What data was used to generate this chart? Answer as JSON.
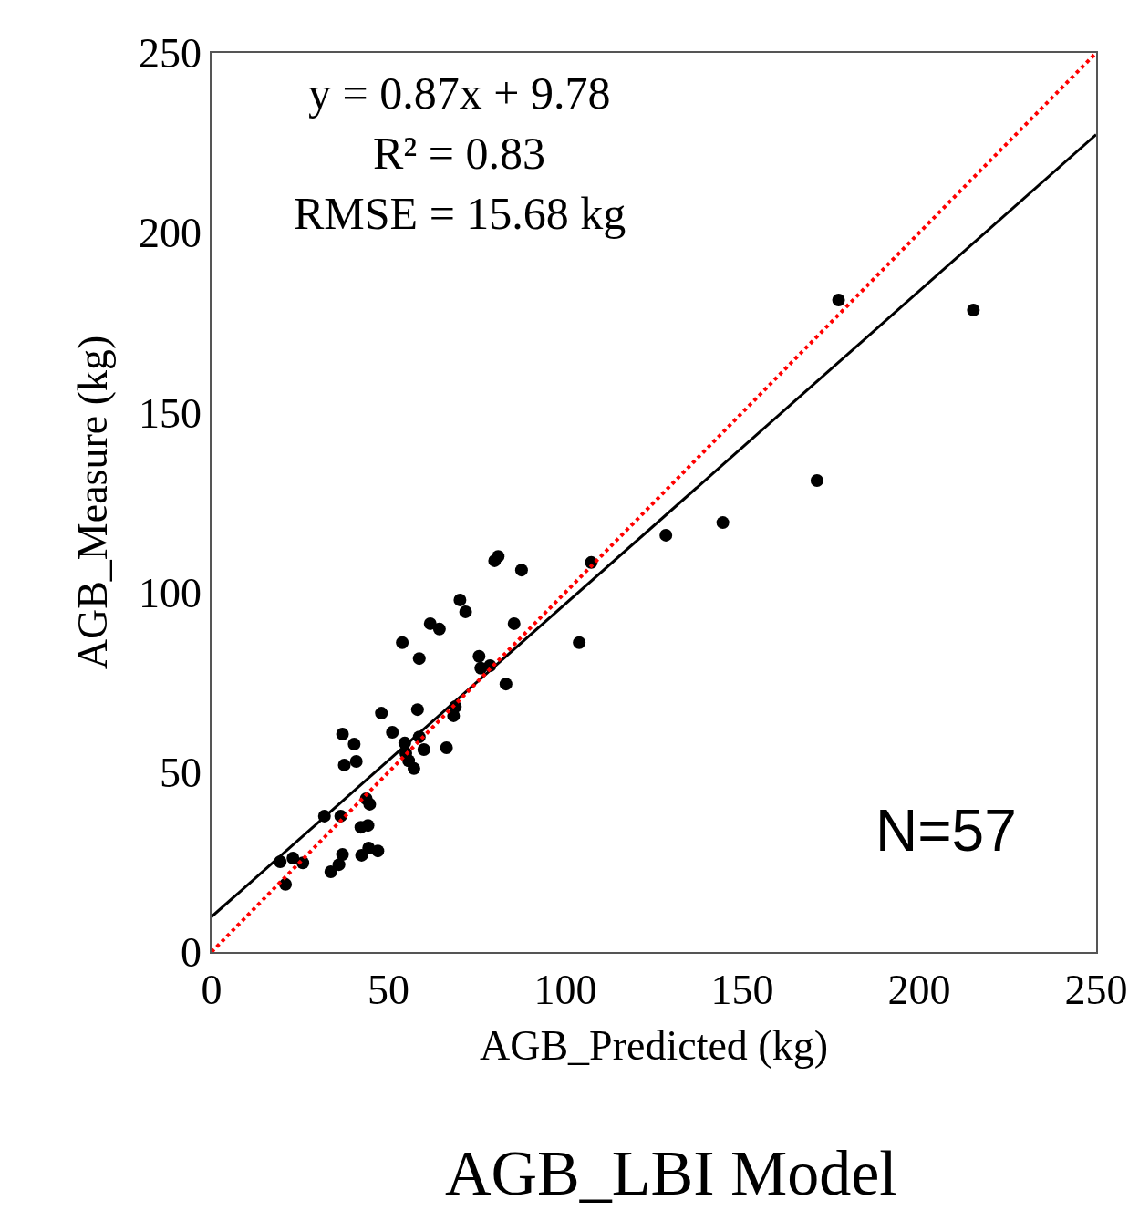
{
  "chart_data": {
    "type": "scatter",
    "title": "AGB_LBI Model",
    "xlabel": "AGB_Predicted (kg)",
    "ylabel": "AGB_Measure (kg)",
    "xlim": [
      0,
      250
    ],
    "ylim": [
      0,
      250
    ],
    "xticks": [
      0,
      50,
      100,
      150,
      200,
      250
    ],
    "yticks": [
      0,
      50,
      100,
      150,
      200,
      250
    ],
    "annotations": [
      "y = 0.87x + 9.78",
      "R² = 0.83",
      "RMSE = 15.68 kg",
      "N=57"
    ],
    "series": [
      {
        "color": "#000000",
        "marker": "circle",
        "x": [
          19.4,
          20.9,
          23.0,
          25.8,
          31.9,
          33.7,
          36.0,
          37.0,
          36.5,
          37.0,
          37.5,
          40.3,
          40.9,
          42.2,
          42.4,
          43.7,
          44.2,
          44.7,
          44.4,
          47.0,
          48.0,
          51.1,
          53.9,
          54.6,
          54.9,
          55.7,
          57.2,
          58.2,
          58.7,
          58.7,
          60.0,
          61.8,
          64.4,
          66.4,
          68.4,
          68.9,
          70.2,
          71.8,
          75.6,
          76.1,
          78.7,
          80.0,
          81.0,
          83.2,
          85.5,
          87.6,
          103.9,
          107.3,
          128.4,
          144.5,
          171.1,
          177.2,
          215.3
        ],
        "values": [
          25.1,
          18.8,
          26.1,
          24.8,
          37.8,
          22.3,
          24.3,
          27.1,
          37.8,
          60.6,
          52.0,
          57.8,
          53.0,
          34.7,
          26.9,
          42.6,
          35.2,
          41.1,
          28.9,
          28.1,
          66.4,
          61.1,
          86.0,
          58.1,
          55.3,
          53.2,
          51.0,
          67.4,
          81.6,
          59.8,
          56.3,
          91.3,
          89.8,
          56.8,
          65.7,
          68.2,
          97.9,
          94.6,
          82.2,
          78.9,
          79.6,
          108.8,
          110.0,
          74.5,
          91.3,
          106.2,
          86.0,
          108.3,
          115.9,
          119.4,
          131.1,
          181.3,
          178.5
        ]
      },
      {
        "type": "line",
        "color": "#000000",
        "marker": "none",
        "line_style": "solid",
        "x": [
          0,
          250
        ],
        "values": [
          9.8,
          227.3
        ]
      },
      {
        "type": "line",
        "color": "#ff0000",
        "marker": "none",
        "line_style": "dotted",
        "x": [
          0,
          250
        ],
        "values": [
          0,
          250
        ]
      }
    ]
  }
}
